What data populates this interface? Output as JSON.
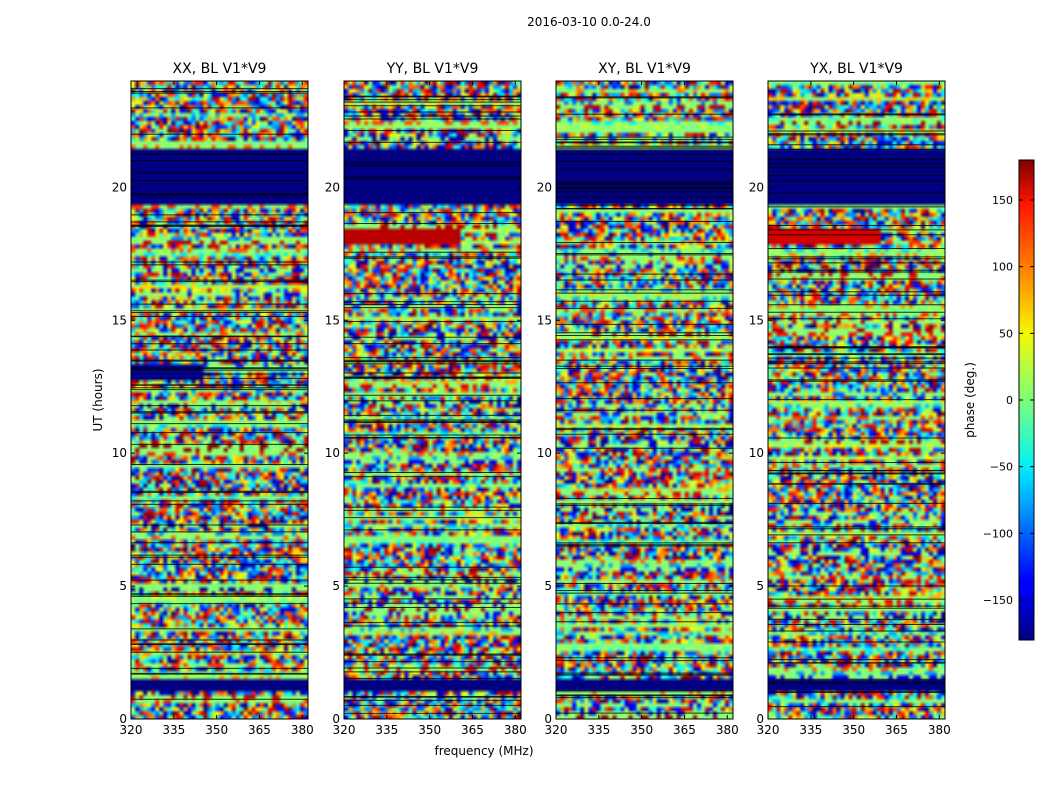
{
  "figure_title": "2016-03-10 0.0-24.0",
  "chart_data": {
    "type": "heatmap",
    "title": "2016-03-10 0.0-24.0",
    "xlabel": "frequency (MHz)",
    "ylabel": "UT (hours)",
    "xlim": [
      320,
      382
    ],
    "ylim": [
      0,
      24
    ],
    "x_ticks": [
      320,
      335,
      350,
      365,
      380
    ],
    "y_ticks": [
      0,
      5,
      10,
      15,
      20
    ],
    "panels": [
      {
        "title": "XX, BL V1*V9"
      },
      {
        "title": "YY, BL V1*V9"
      },
      {
        "title": "XY, BL V1*V9"
      },
      {
        "title": "YX, BL V1*V9"
      }
    ],
    "colorbar": {
      "label": "phase (deg.)",
      "range": [
        -180,
        180
      ],
      "ticks": [
        -150,
        -100,
        -50,
        0,
        50,
        100,
        150
      ],
      "tick_labels": [
        "−150",
        "−100",
        "−50",
        "0",
        "50",
        "100",
        "150"
      ],
      "colormap": "jet"
    },
    "flagged_bands_hours": [
      {
        "panels": [
          0,
          1,
          2,
          3
        ],
        "from": 19.3,
        "to": 21.4,
        "value": -180
      },
      {
        "panels": [
          0,
          1,
          2,
          3
        ],
        "from": 1.0,
        "to": 1.5,
        "value": -180
      },
      {
        "panels": [
          0
        ],
        "from": 12.8,
        "to": 13.3,
        "value": -170,
        "freq_to": 346
      },
      {
        "panels": [
          1
        ],
        "from": 17.9,
        "to": 18.4,
        "value": 160,
        "freq_to": 361
      },
      {
        "panels": [
          3
        ],
        "from": 17.9,
        "to": 18.4,
        "value": 150,
        "freq_to": 360
      }
    ]
  }
}
